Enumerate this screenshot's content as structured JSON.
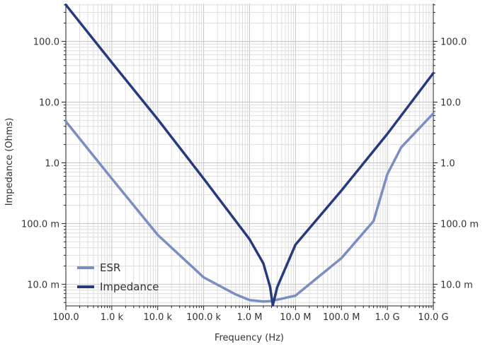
{
  "chart_data": {
    "type": "line",
    "title": "",
    "xlabel": "Frequency (Hz)",
    "ylabel": "Impedance (Ohms)",
    "x_scale": "log",
    "y_scale": "log",
    "xlim": [
      100,
      10000000000
    ],
    "ylim": [
      0.0044,
      420
    ],
    "grid": true,
    "legend_position": "bottom-left",
    "x_ticks": [
      {
        "value": 100,
        "label": "100.0"
      },
      {
        "value": 1000,
        "label": "1.0 k"
      },
      {
        "value": 10000,
        "label": "10.0 k"
      },
      {
        "value": 100000,
        "label": "100.0 k"
      },
      {
        "value": 1000000,
        "label": "1.0 M"
      },
      {
        "value": 10000000,
        "label": "10.0 M"
      },
      {
        "value": 100000000,
        "label": "100.0 M"
      },
      {
        "value": 1000000000,
        "label": "1.0 G"
      },
      {
        "value": 10000000000,
        "label": "10.0 G"
      }
    ],
    "y_ticks": [
      {
        "value": 0.01,
        "label": "10.0 m"
      },
      {
        "value": 0.1,
        "label": "100.0 m"
      },
      {
        "value": 1,
        "label": "1.0"
      },
      {
        "value": 10,
        "label": "10.0"
      },
      {
        "value": 100,
        "label": "100.0"
      }
    ],
    "series": [
      {
        "name": "ESR",
        "color": "#7b8ec4",
        "x": [
          100,
          1000,
          10000,
          100000,
          500000,
          1000000,
          2000000,
          3000000,
          10000000,
          100000000,
          500000000,
          1000000000,
          2000000000,
          10000000000
        ],
        "y": [
          4.8,
          0.55,
          0.065,
          0.013,
          0.0068,
          0.0055,
          0.0052,
          0.0053,
          0.0065,
          0.027,
          0.11,
          0.65,
          1.8,
          6.5
        ]
      },
      {
        "name": "Impedance",
        "color": "#263a7e",
        "x": [
          100,
          1000,
          10000,
          100000,
          1000000,
          2000000,
          2800000,
          3200000,
          4000000,
          10000000,
          100000000,
          1000000000,
          10000000000
        ],
        "y": [
          400,
          45,
          5.2,
          0.55,
          0.055,
          0.022,
          0.009,
          0.0045,
          0.009,
          0.045,
          0.35,
          3.0,
          30
        ]
      }
    ]
  }
}
